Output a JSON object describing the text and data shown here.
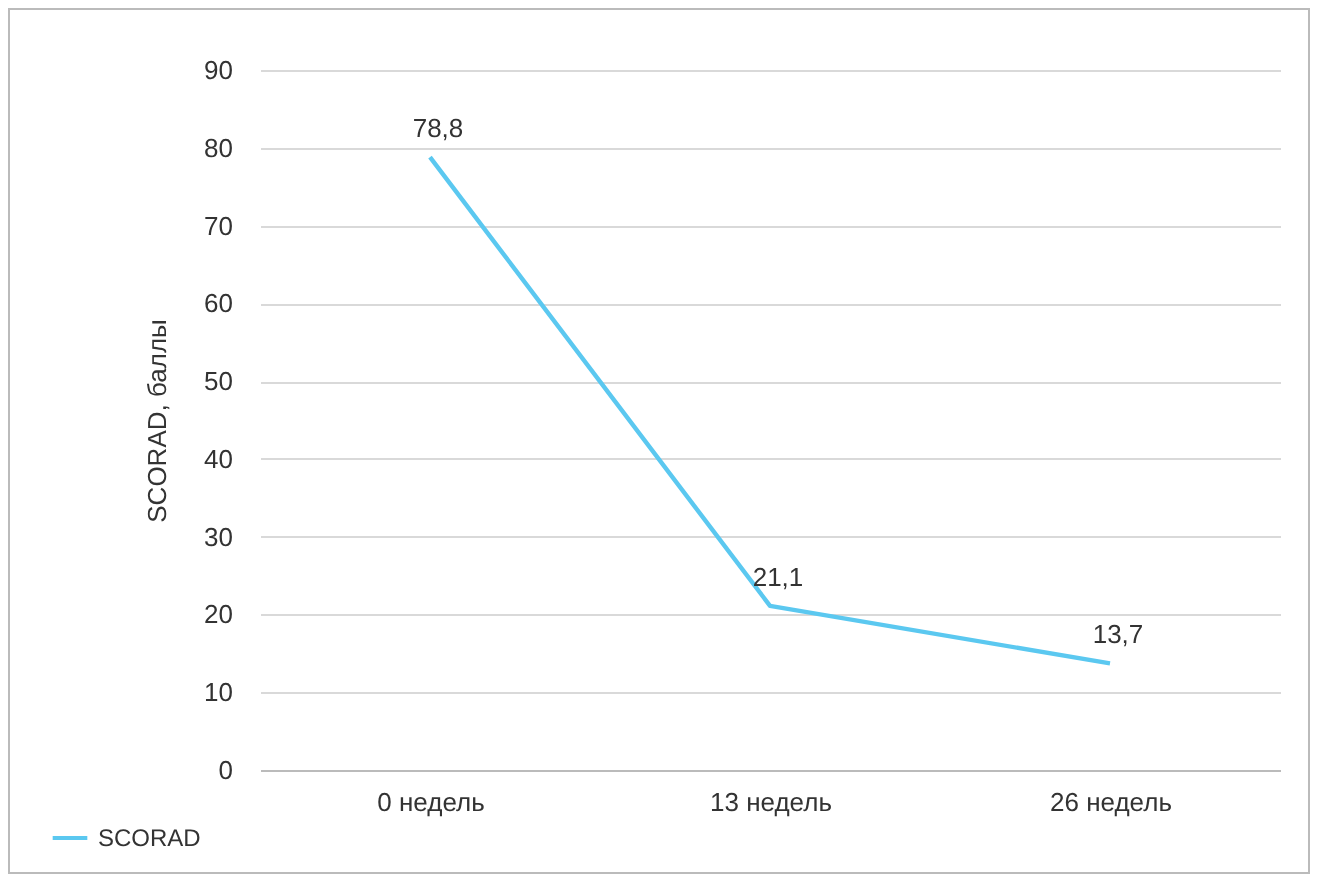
{
  "chart_data": {
    "type": "line",
    "ylabel": "SCORAD, баллы",
    "categories": [
      "0 недель",
      "13 недель",
      "26 недель"
    ],
    "series": [
      {
        "name": "SCORAD",
        "color": "#5bc8f0",
        "values": [
          78.8,
          21.1,
          13.7
        ],
        "value_labels": [
          "78,8",
          "21,1",
          "13,7"
        ]
      }
    ],
    "ylim": [
      0,
      90
    ],
    "yticks": [
      0,
      10,
      20,
      30,
      40,
      50,
      60,
      70,
      80,
      90
    ],
    "grid": "y",
    "legend": "bottom left",
    "marker": "none",
    "line_style": "solid"
  }
}
